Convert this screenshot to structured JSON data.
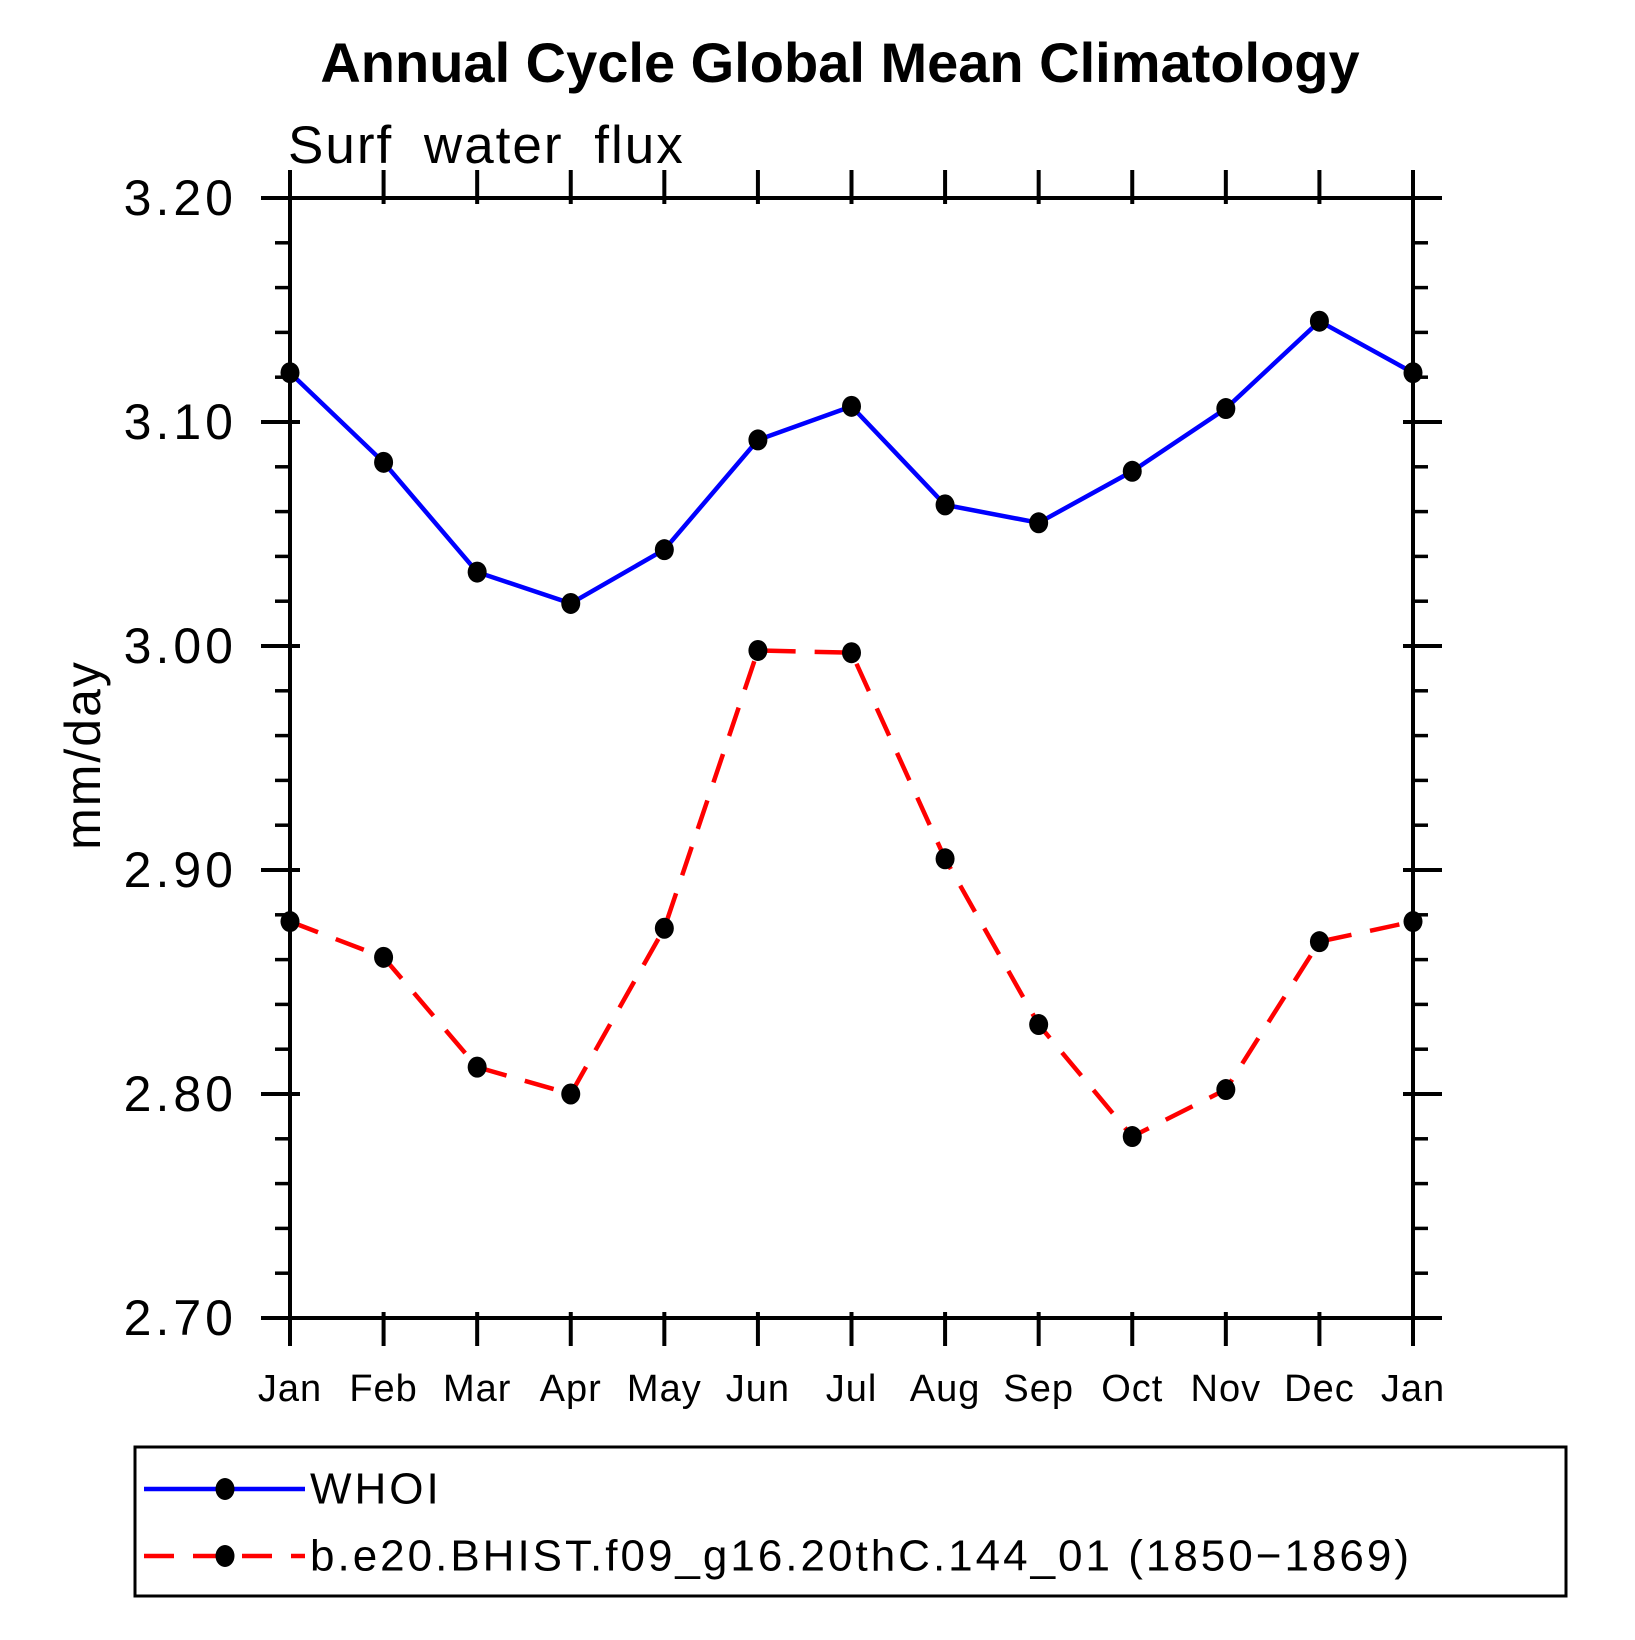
{
  "title": "Annual Cycle Global Mean Climatology",
  "subtitle": "Surf water flux",
  "ylabel": "mm/day",
  "colors": {
    "background": "#ffffff",
    "axis": "#000000",
    "text": "#000000",
    "whoi_line": "#0000ff",
    "model_line": "#ff0000",
    "marker": "#000000"
  },
  "chart_data": {
    "type": "line",
    "title": "Annual Cycle Global Mean Climatology",
    "subtitle": "Surf water flux",
    "xlabel": "",
    "ylabel": "mm/day",
    "categories": [
      "Jan",
      "Feb",
      "Mar",
      "Apr",
      "May",
      "Jun",
      "Jul",
      "Aug",
      "Sep",
      "Oct",
      "Nov",
      "Dec",
      "Jan"
    ],
    "ylim": [
      2.7,
      3.2
    ],
    "ytick_major_step": 0.1,
    "ytick_minor_step": 0.02,
    "ytick_labels": [
      "2.70",
      "2.80",
      "2.90",
      "3.00",
      "3.10",
      "3.20"
    ],
    "grid": false,
    "legend_position": "bottom-box",
    "series": [
      {
        "name": "WHOI",
        "color": "#0000ff",
        "line_style": "solid",
        "marker": "filled-circle",
        "marker_color": "#000000",
        "values": [
          3.122,
          3.082,
          3.033,
          3.019,
          3.043,
          3.092,
          3.107,
          3.063,
          3.055,
          3.078,
          3.106,
          3.145,
          3.122
        ]
      },
      {
        "name": "b.e20.BHIST.f09_g16.20thC.144_01 (1850−1869)",
        "color": "#ff0000",
        "line_style": "dashed",
        "marker": "filled-circle",
        "marker_color": "#000000",
        "values": [
          2.877,
          2.861,
          2.812,
          2.8,
          2.874,
          2.998,
          2.997,
          2.905,
          2.831,
          2.781,
          2.802,
          2.868,
          2.877
        ]
      }
    ]
  }
}
